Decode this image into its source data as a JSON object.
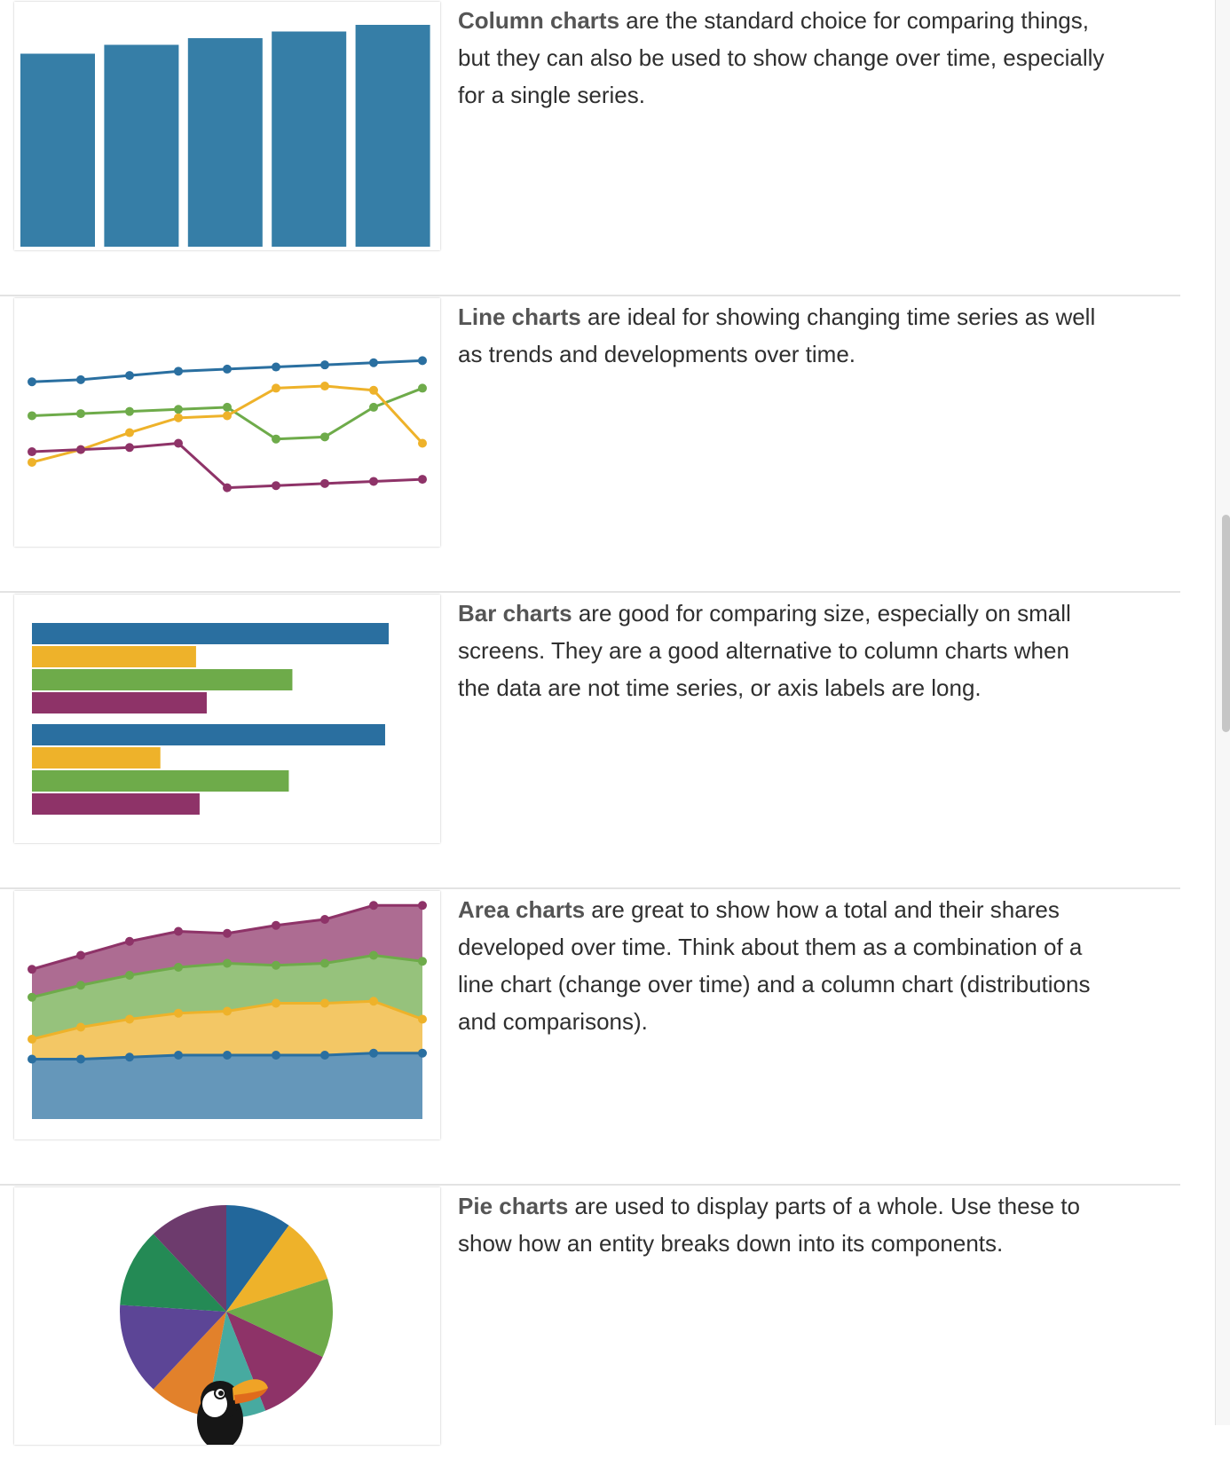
{
  "colors": {
    "blue": "#2a6fa0",
    "column_blue": "#367ea7",
    "orange": "#eeb22a",
    "green": "#6eab4a",
    "purple": "#8e3368",
    "teal": "#47aaa0",
    "dark_purple": "#6d3b6d",
    "pie_green": "#248a55",
    "pie_violet": "#5c4596",
    "pie_orange": "#e2812b",
    "pie_blue": "#22679b"
  },
  "sections": [
    {
      "title": "Column charts",
      "text": " are the standard choice for comparing things, but they can also be used to show change over time, especially for a single series.",
      "thumbnail_icon": "column-chart-icon"
    },
    {
      "title": "Line charts",
      "text": " are ideal for showing changing time series as well as trends and developments over time.",
      "thumbnail_icon": "line-chart-icon"
    },
    {
      "title": "Bar charts",
      "text": " are good for comparing size, especially on small screens. They are a good alternative to column charts when the data are not time series, or axis labels are long.",
      "thumbnail_icon": "bar-chart-icon"
    },
    {
      "title": "Area charts",
      "text": " are great to show how a total and their shares developed over time. Think about them as a combination of a line chart (change over time) and a column chart (distributions and comparisons).",
      "thumbnail_icon": "area-chart-icon"
    },
    {
      "title": "Pie charts",
      "text": " are used to display parts of a whole. Use these to show how an entity breaks down into its components.",
      "thumbnail_icon": "pie-chart-icon"
    }
  ],
  "chart_data": [
    {
      "type": "bar",
      "values": [
        87,
        91,
        94,
        97,
        100
      ]
    },
    {
      "type": "line",
      "series": [
        {
          "values": [
            91,
            92,
            94,
            96,
            97,
            98,
            99,
            100,
            101
          ]
        },
        {
          "values": [
            75,
            76,
            77,
            78,
            79,
            64,
            65,
            79,
            88
          ]
        },
        {
          "values": [
            53,
            59,
            67,
            74,
            75,
            88,
            89,
            87,
            62
          ]
        },
        {
          "values": [
            58,
            59,
            60,
            62,
            41,
            42,
            43,
            44,
            45
          ]
        }
      ]
    },
    {
      "type": "bar",
      "orientation": "horizontal",
      "groups": [
        {
          "values": [
            100,
            46,
            73,
            49
          ]
        },
        {
          "values": [
            99,
            36,
            72,
            47
          ]
        }
      ]
    },
    {
      "type": "area",
      "stacked": true,
      "series": [
        {
          "values": [
            30,
            30,
            31,
            32,
            32,
            32,
            32,
            33,
            33
          ]
        },
        {
          "values": [
            10,
            16,
            19,
            21,
            22,
            26,
            26,
            26,
            17
          ]
        },
        {
          "values": [
            21,
            21,
            22,
            23,
            24,
            19,
            20,
            23,
            29
          ]
        },
        {
          "values": [
            14,
            15,
            17,
            18,
            15,
            20,
            22,
            25,
            28
          ]
        }
      ]
    },
    {
      "type": "pie",
      "values": [
        10,
        10,
        12,
        12,
        9,
        9,
        14,
        12,
        12
      ]
    }
  ]
}
